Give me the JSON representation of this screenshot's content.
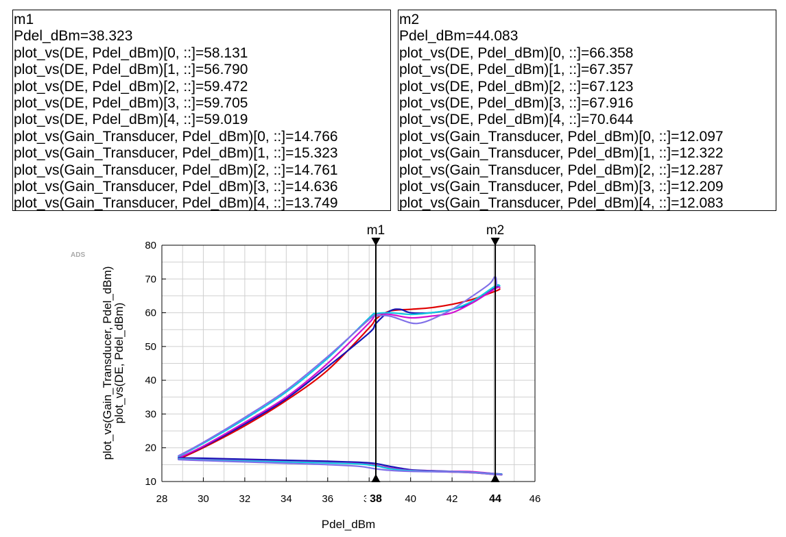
{
  "markers": [
    {
      "name": "m1",
      "lines": [
        "m1",
        "Pdel_dBm=38.323",
        "plot_vs(DE, Pdel_dBm)[0, ::]=58.131",
        "plot_vs(DE, Pdel_dBm)[1, ::]=56.790",
        "plot_vs(DE, Pdel_dBm)[2, ::]=59.472",
        "plot_vs(DE, Pdel_dBm)[3, ::]=59.705",
        "plot_vs(DE, Pdel_dBm)[4, ::]=59.019",
        "plot_vs(Gain_Transducer, Pdel_dBm)[0, ::]=14.766",
        "plot_vs(Gain_Transducer, Pdel_dBm)[1, ::]=15.323",
        "plot_vs(Gain_Transducer, Pdel_dBm)[2, ::]=14.761",
        "plot_vs(Gain_Transducer, Pdel_dBm)[3, ::]=14.636",
        "plot_vs(Gain_Transducer, Pdel_dBm)[4, ::]=13.749"
      ]
    },
    {
      "name": "m2",
      "lines": [
        "m2",
        "Pdel_dBm=44.083",
        "plot_vs(DE, Pdel_dBm)[0, ::]=66.358",
        "plot_vs(DE, Pdel_dBm)[1, ::]=67.357",
        "plot_vs(DE, Pdel_dBm)[2, ::]=67.123",
        "plot_vs(DE, Pdel_dBm)[3, ::]=67.916",
        "plot_vs(DE, Pdel_dBm)[4, ::]=70.644",
        "plot_vs(Gain_Transducer, Pdel_dBm)[0, ::]=12.097",
        "plot_vs(Gain_Transducer, Pdel_dBm)[1, ::]=12.322",
        "plot_vs(Gain_Transducer, Pdel_dBm)[2, ::]=12.287",
        "plot_vs(Gain_Transducer, Pdel_dBm)[3, ::]=12.209",
        "plot_vs(Gain_Transducer, Pdel_dBm)[4, ::]=12.083"
      ]
    }
  ],
  "chart_data": {
    "type": "line",
    "watermark": "ADS",
    "xlabel": "Pdel_dBm",
    "ylabel_lines": [
      "plot_vs(Gain_Transducer, Pdel_dBm)",
      "plot_vs(DE, Pdel_dBm)"
    ],
    "xlim": [
      28,
      46
    ],
    "ylim": [
      10,
      80
    ],
    "xticks": [
      28,
      30,
      32,
      34,
      36,
      38,
      40,
      42,
      44,
      46
    ],
    "yticks": [
      10,
      20,
      30,
      40,
      50,
      60,
      70,
      80
    ],
    "xtick_labels": [
      "28",
      "30",
      "32",
      "34",
      "36",
      "38",
      "40",
      "42",
      "44",
      "46"
    ],
    "ytick_labels": [
      "10",
      "20",
      "30",
      "40",
      "50",
      "60",
      "70",
      "80"
    ],
    "grid": true,
    "markers": [
      {
        "label": "m1",
        "x": 38.323,
        "axis_label": "38"
      },
      {
        "label": "m2",
        "x": 44.083,
        "axis_label": "44"
      }
    ],
    "series": [
      {
        "name": "plot_vs(DE, Pdel_dBm)[0, ::]",
        "color": "#e00000",
        "points": [
          [
            28.8,
            16.6
          ],
          [
            30,
            20
          ],
          [
            32,
            26.5
          ],
          [
            34,
            34
          ],
          [
            36,
            43
          ],
          [
            38,
            55.5
          ],
          [
            38.323,
            58.131
          ],
          [
            39,
            60.5
          ],
          [
            40,
            61
          ],
          [
            41,
            61.5
          ],
          [
            42,
            62.5
          ],
          [
            43,
            64
          ],
          [
            44.083,
            66.358
          ],
          [
            44.3,
            67
          ]
        ]
      },
      {
        "name": "plot_vs(DE, Pdel_dBm)[1, ::]",
        "color": "#1414b4",
        "points": [
          [
            28.8,
            17
          ],
          [
            30,
            20.3
          ],
          [
            32,
            27
          ],
          [
            34,
            34.5
          ],
          [
            36,
            44
          ],
          [
            38,
            54
          ],
          [
            38.323,
            56.79
          ],
          [
            39,
            60.5
          ],
          [
            39.5,
            61
          ],
          [
            40,
            60
          ],
          [
            41,
            60
          ],
          [
            42,
            61
          ],
          [
            43,
            63
          ],
          [
            44.083,
            67.357
          ],
          [
            44.3,
            67.5
          ]
        ]
      },
      {
        "name": "plot_vs(DE, Pdel_dBm)[2, ::]",
        "color": "#d010d0",
        "points": [
          [
            28.8,
            17
          ],
          [
            30,
            20.5
          ],
          [
            32,
            27.5
          ],
          [
            34,
            35
          ],
          [
            36,
            45
          ],
          [
            38,
            57
          ],
          [
            38.323,
            59.472
          ],
          [
            39,
            59.5
          ],
          [
            40,
            58.5
          ],
          [
            41,
            59
          ],
          [
            42,
            60
          ],
          [
            43,
            63
          ],
          [
            44.083,
            67.123
          ],
          [
            44.3,
            67.5
          ]
        ]
      },
      {
        "name": "plot_vs(DE, Pdel_dBm)[3, ::]",
        "color": "#10c8e0",
        "points": [
          [
            28.8,
            17.4
          ],
          [
            30,
            21.3
          ],
          [
            32,
            28.5
          ],
          [
            34,
            36.5
          ],
          [
            36,
            46.5
          ],
          [
            38,
            58.5
          ],
          [
            38.323,
            59.705
          ],
          [
            39,
            60
          ],
          [
            40,
            59.5
          ],
          [
            41,
            60
          ],
          [
            42,
            61
          ],
          [
            43,
            63.5
          ],
          [
            44.083,
            67.916
          ],
          [
            44.3,
            68
          ]
        ]
      },
      {
        "name": "plot_vs(DE, Pdel_dBm)[4, ::]",
        "color": "#8070e8",
        "points": [
          [
            28.8,
            17.6
          ],
          [
            30,
            21.6
          ],
          [
            32,
            29
          ],
          [
            34,
            37
          ],
          [
            36,
            47
          ],
          [
            38,
            58
          ],
          [
            38.323,
            59.019
          ],
          [
            39,
            59
          ],
          [
            40,
            57
          ],
          [
            40.5,
            57
          ],
          [
            41,
            58
          ],
          [
            42,
            61
          ],
          [
            43,
            65
          ],
          [
            43.8,
            68.5
          ],
          [
            44.083,
            70.644
          ],
          [
            44.15,
            68
          ]
        ]
      },
      {
        "name": "plot_vs(Gain_Transducer, Pdel_dBm)[0, ::]",
        "color": "#e00000",
        "points": [
          [
            28.8,
            16.8
          ],
          [
            30,
            16.5
          ],
          [
            32,
            16.2
          ],
          [
            34,
            15.9
          ],
          [
            36,
            15.6
          ],
          [
            37.5,
            15.3
          ],
          [
            38.323,
            14.766
          ],
          [
            39,
            14
          ],
          [
            40,
            13.2
          ],
          [
            41,
            13
          ],
          [
            42,
            12.8
          ],
          [
            43,
            12.6
          ],
          [
            44.083,
            12.097
          ],
          [
            44.4,
            12
          ]
        ]
      },
      {
        "name": "plot_vs(Gain_Transducer, Pdel_dBm)[1, ::]",
        "color": "#1414b4",
        "points": [
          [
            28.8,
            17
          ],
          [
            30,
            16.9
          ],
          [
            32,
            16.6
          ],
          [
            34,
            16.3
          ],
          [
            36,
            16
          ],
          [
            37.5,
            15.7
          ],
          [
            38.323,
            15.323
          ],
          [
            39,
            14.5
          ],
          [
            40,
            13.5
          ],
          [
            41,
            13.2
          ],
          [
            42,
            13
          ],
          [
            43,
            12.8
          ],
          [
            44.083,
            12.322
          ],
          [
            44.4,
            12.2
          ]
        ]
      },
      {
        "name": "plot_vs(Gain_Transducer, Pdel_dBm)[2, ::]",
        "color": "#d010d0",
        "points": [
          [
            28.8,
            16.8
          ],
          [
            30,
            16.5
          ],
          [
            32,
            16.2
          ],
          [
            34,
            15.9
          ],
          [
            36,
            15.6
          ],
          [
            37.5,
            15.3
          ],
          [
            38.323,
            14.761
          ],
          [
            39,
            14
          ],
          [
            40,
            13.3
          ],
          [
            41,
            13.1
          ],
          [
            42,
            13
          ],
          [
            43,
            12.9
          ],
          [
            44.083,
            12.287
          ],
          [
            44.4,
            12.1
          ]
        ]
      },
      {
        "name": "plot_vs(Gain_Transducer, Pdel_dBm)[3, ::]",
        "color": "#10c8e0",
        "points": [
          [
            28.8,
            16.7
          ],
          [
            30,
            16.4
          ],
          [
            32,
            16.1
          ],
          [
            34,
            15.8
          ],
          [
            36,
            15.5
          ],
          [
            37.5,
            15.2
          ],
          [
            38.323,
            14.636
          ],
          [
            39,
            13.8
          ],
          [
            40,
            13.2
          ],
          [
            41,
            13
          ],
          [
            42,
            12.9
          ],
          [
            43,
            12.7
          ],
          [
            44.083,
            12.209
          ],
          [
            44.4,
            12.1
          ]
        ]
      },
      {
        "name": "plot_vs(Gain_Transducer, Pdel_dBm)[4, ::]",
        "color": "#8070e8",
        "points": [
          [
            28.8,
            16.5
          ],
          [
            30,
            16.2
          ],
          [
            32,
            15.8
          ],
          [
            34,
            15.4
          ],
          [
            36,
            15
          ],
          [
            37.5,
            14.5
          ],
          [
            38.323,
            13.749
          ],
          [
            39,
            13.3
          ],
          [
            40,
            13
          ],
          [
            41,
            12.9
          ],
          [
            42,
            12.8
          ],
          [
            43,
            12.6
          ],
          [
            44.083,
            12.083
          ],
          [
            44.4,
            12
          ]
        ]
      }
    ]
  }
}
